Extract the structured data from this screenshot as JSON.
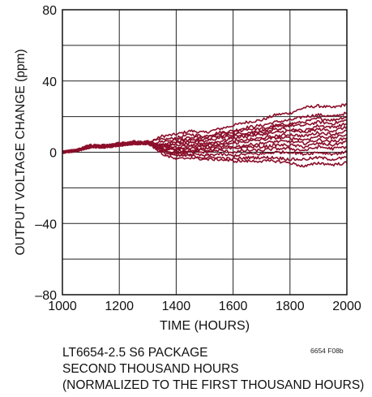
{
  "chart_data": {
    "type": "line",
    "title": "",
    "xlabel": "TIME (HOURS)",
    "ylabel": "OUTPUT VOLTAGE CHANGE (ppm)",
    "xlim": [
      1000,
      2000
    ],
    "ylim": [
      -80,
      80
    ],
    "x_ticks": [
      1000,
      1200,
      1400,
      1600,
      1800,
      2000
    ],
    "x_tick_labels": [
      "1000",
      "1200",
      "1400",
      "1600",
      "1800",
      "2000"
    ],
    "y_ticks": [
      -80,
      -40,
      0,
      40,
      80
    ],
    "y_tick_labels": [
      "–80",
      "–40",
      "0",
      "40",
      "80"
    ],
    "grid": true,
    "line_color": "#8b0f2b",
    "x": [
      1000,
      1050,
      1100,
      1150,
      1200,
      1250,
      1300,
      1350,
      1400,
      1450,
      1500,
      1550,
      1600,
      1650,
      1700,
      1750,
      1800,
      1850,
      1900,
      1950,
      2000
    ],
    "series": [
      {
        "values": [
          0,
          1,
          3,
          3,
          4,
          5,
          5,
          9,
          10,
          12,
          11,
          13,
          15,
          17,
          18,
          21,
          22,
          25,
          26,
          25,
          27
        ]
      },
      {
        "values": [
          0,
          1,
          3,
          3,
          5,
          5,
          6,
          7,
          8,
          10,
          9,
          11,
          12,
          14,
          15,
          17,
          18,
          20,
          21,
          20,
          22
        ]
      },
      {
        "values": [
          0,
          1,
          4,
          3,
          4,
          6,
          5,
          6,
          7,
          8,
          8,
          10,
          11,
          13,
          13,
          15,
          16,
          17,
          19,
          18,
          20
        ]
      },
      {
        "values": [
          0,
          1,
          3,
          4,
          4,
          5,
          5,
          4,
          6,
          7,
          7,
          9,
          10,
          11,
          12,
          14,
          15,
          15,
          17,
          16,
          18
        ]
      },
      {
        "values": [
          0,
          1,
          3,
          3,
          5,
          5,
          5,
          4,
          5,
          6,
          6,
          8,
          9,
          10,
          11,
          13,
          13,
          12,
          15,
          14,
          16
        ]
      },
      {
        "values": [
          0,
          1,
          4,
          3,
          4,
          5,
          5,
          4,
          4,
          5,
          5,
          6,
          8,
          9,
          10,
          11,
          12,
          11,
          13,
          12,
          14
        ]
      },
      {
        "values": [
          0,
          1,
          3,
          4,
          4,
          5,
          6,
          3,
          3,
          4,
          4,
          5,
          6,
          7,
          8,
          9,
          10,
          9,
          11,
          10,
          12
        ]
      },
      {
        "values": [
          0,
          1,
          3,
          3,
          5,
          5,
          5,
          3,
          2,
          3,
          3,
          4,
          5,
          6,
          7,
          8,
          8,
          7,
          9,
          8,
          10
        ]
      },
      {
        "values": [
          0,
          1,
          4,
          3,
          4,
          6,
          5,
          2,
          2,
          2,
          2,
          3,
          3,
          4,
          5,
          6,
          6,
          5,
          7,
          6,
          8
        ]
      },
      {
        "values": [
          0,
          1,
          3,
          4,
          4,
          5,
          5,
          2,
          1,
          1,
          1,
          2,
          2,
          3,
          3,
          4,
          4,
          3,
          5,
          4,
          6
        ]
      },
      {
        "values": [
          0,
          1,
          3,
          3,
          5,
          5,
          6,
          1,
          0,
          0,
          0,
          1,
          0,
          1,
          1,
          2,
          2,
          1,
          3,
          2,
          3
        ]
      },
      {
        "values": [
          0,
          1,
          4,
          3,
          4,
          5,
          5,
          1,
          -1,
          -1,
          -2,
          -1,
          -2,
          -1,
          -1,
          0,
          0,
          -1,
          0,
          -1,
          0
        ]
      },
      {
        "values": [
          0,
          1,
          3,
          4,
          4,
          5,
          5,
          0,
          -2,
          -2,
          -3,
          -3,
          -4,
          -3,
          -3,
          -3,
          -4,
          -4,
          -3,
          -4,
          -3
        ]
      },
      {
        "values": [
          0,
          1,
          3,
          3,
          5,
          5,
          6,
          -1,
          -4,
          -3,
          -4,
          -4,
          -5,
          -5,
          -5,
          -5,
          -6,
          -8,
          -6,
          -7,
          -6
        ]
      }
    ]
  },
  "notes": {
    "line1": "LT6654-2.5 S6 PACKAGE",
    "line2": "SECOND THOUSAND HOURS",
    "line3": "(NORMALIZED TO THE FIRST THOUSAND HOURS)",
    "figure_id": "6654 F08b"
  }
}
